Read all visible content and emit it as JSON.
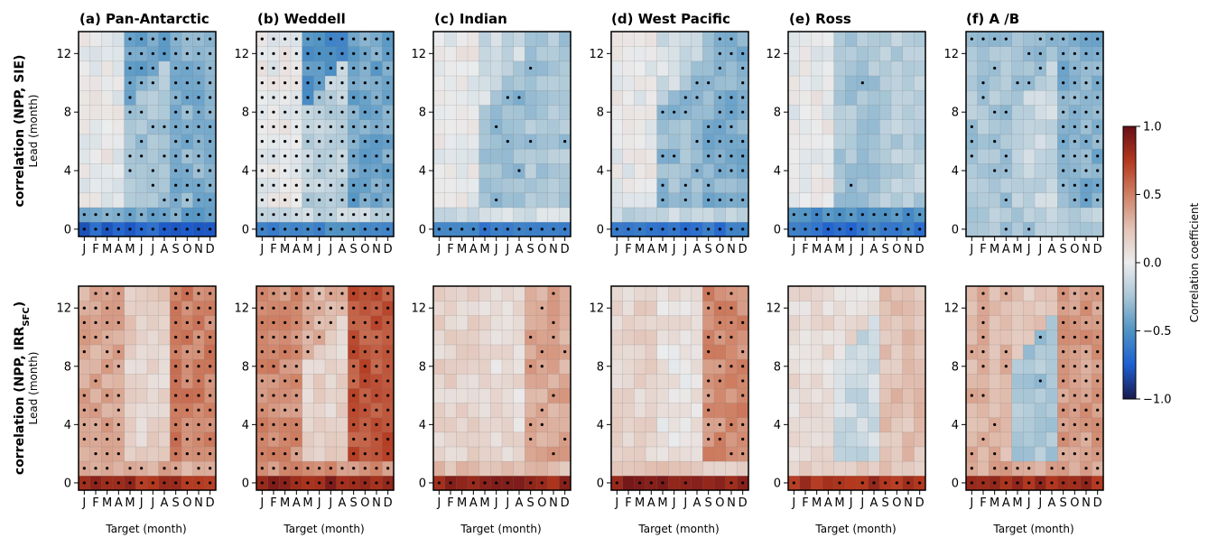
{
  "chart_data": {
    "type": "heatmap",
    "titles": [
      "(a) Pan-Antarctic",
      "(b) Weddell",
      "(c) Indian",
      "(d) West Pacific",
      "(e) Ross",
      "(f) A /B"
    ],
    "row_labels": [
      {
        "main": "correlation (NPP, SIE)",
        "pre": "",
        "sub": "",
        "post": ""
      },
      {
        "main": "",
        "pre": "correlation (NPP, IRR",
        "sub": "SFC",
        "post": ")"
      }
    ],
    "ylabel": "Lead (month)",
    "xlabel": "Target (month)",
    "x_ticks": [
      "J",
      "F",
      "M",
      "A",
      "M",
      "J",
      "J",
      "A",
      "S",
      "O",
      "N",
      "D"
    ],
    "y_ticks": [
      0,
      4,
      8,
      12
    ],
    "ylim": [
      -0.5,
      13.5
    ],
    "colorbar": {
      "label": "Correlation coefficient",
      "ticks": [
        "1.0",
        "0.5",
        "0.0",
        "−0.5",
        "−1.0"
      ],
      "range": [
        -1,
        1
      ],
      "colors": [
        "#1a1a4e",
        "#1d5fd1",
        "#4f93c4",
        "#a9c6d6",
        "#ebeced",
        "#e2c3b6",
        "#cf8064",
        "#b3381e",
        "#661018"
      ]
    },
    "stippling": "black dots mark statistically significant correlations",
    "panels": [
      {
        "base": -0.4,
        "diag": -0.25,
        "early": 0.0,
        "low0": -0.4,
        "row0": -0.72,
        "late": -0.35,
        "sig": "strong"
      },
      {
        "base": -0.5,
        "diag": -0.2,
        "early": 0.0,
        "low0": -0.15,
        "row0": -0.55,
        "late": -0.4,
        "sig": "all"
      },
      {
        "base": -0.12,
        "diag": -0.3,
        "early": 0.0,
        "low0": -0.1,
        "row0": -0.6,
        "late": -0.25,
        "sig": "mid"
      },
      {
        "base": -0.1,
        "diag": -0.3,
        "early": 0.0,
        "low0": -0.15,
        "row0": -0.65,
        "late": -0.35,
        "sig": "mid"
      },
      {
        "base": -0.25,
        "diag": -0.25,
        "early": 0.0,
        "low0": -0.5,
        "row0": -0.65,
        "late": -0.2,
        "sig": "mid"
      },
      {
        "base": -0.3,
        "diag": -0.15,
        "early": -0.25,
        "low0": -0.2,
        "row0": -0.25,
        "late": -0.35,
        "sig": "mixed"
      },
      {
        "base": 0.2,
        "diag": 0.15,
        "early": 0.35,
        "low0": 0.35,
        "row0": 0.8,
        "late": 0.5,
        "sig": "mid"
      },
      {
        "base": 0.3,
        "diag": 0.15,
        "early": 0.45,
        "low0": 0.45,
        "row0": 0.85,
        "late": 0.65,
        "sig": "strong"
      },
      {
        "base": 0.12,
        "diag": 0.1,
        "early": 0.15,
        "low0": 0.25,
        "row0": 0.85,
        "late": 0.35,
        "sig": "sparse"
      },
      {
        "base": 0.08,
        "diag": 0.05,
        "early": 0.15,
        "low0": 0.2,
        "row0": 0.88,
        "late": 0.45,
        "sig": "sparse"
      },
      {
        "base": 0.1,
        "diag": -0.12,
        "early": 0.1,
        "low0": 0.2,
        "row0": 0.8,
        "late": 0.25,
        "sig": "sparse"
      },
      {
        "base": 0.2,
        "diag": -0.25,
        "early": 0.3,
        "low0": 0.35,
        "row0": 0.8,
        "late": 0.4,
        "sig": "mid"
      }
    ]
  }
}
